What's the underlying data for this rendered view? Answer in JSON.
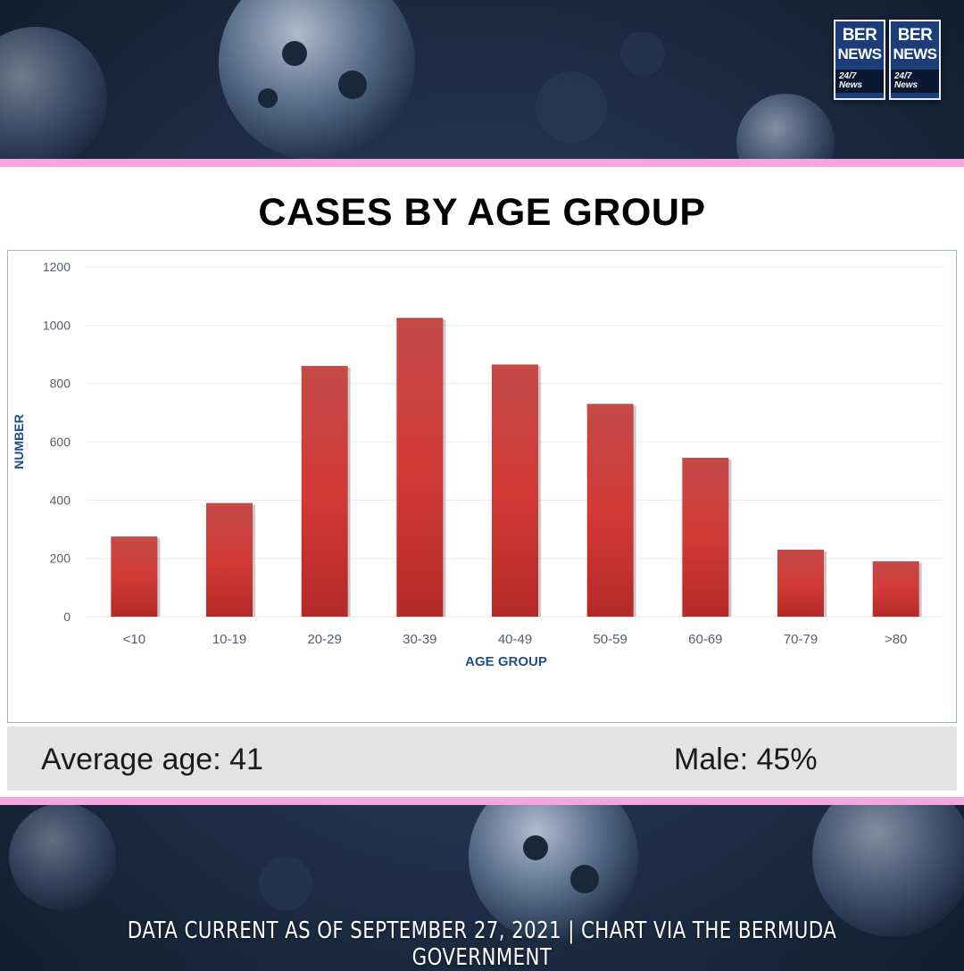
{
  "logo": {
    "line1": "BER",
    "line2": "NEWS",
    "line3": "24/7 News"
  },
  "stats": {
    "average_age": "Average age: 41",
    "male": "Male: 45%"
  },
  "footer": "DATA CURRENT AS OF SEPTEMBER 27, 2021 | CHART VIA THE BERMUDA GOVERNMENT",
  "colors": {
    "bar": "#c8302d",
    "accent_border": "#f4a6e0",
    "axis_label": "#1f4e8c"
  },
  "chart_data": {
    "type": "bar",
    "title": "CASES BY AGE GROUP",
    "xlabel": "AGE GROUP",
    "ylabel": "NUMBER",
    "categories": [
      "<10",
      "10-19",
      "20-29",
      "30-39",
      "40-49",
      "50-59",
      "60-69",
      "70-79",
      ">80"
    ],
    "values": [
      275,
      390,
      860,
      1025,
      865,
      730,
      545,
      230,
      190
    ],
    "ylim": [
      0,
      1200
    ],
    "yticks": [
      "0",
      "200",
      "400",
      "600",
      "800",
      "1000",
      "1200"
    ],
    "grid": true,
    "legend": "none"
  }
}
